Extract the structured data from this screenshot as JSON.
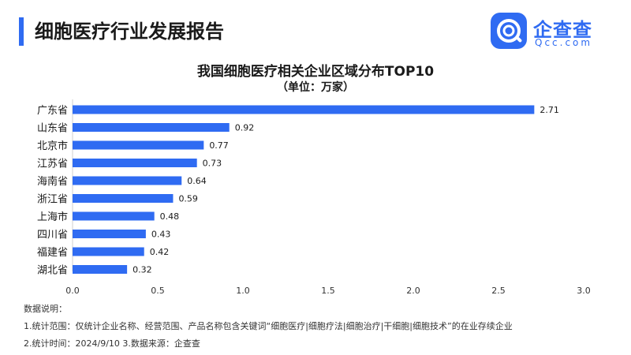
{
  "header": {
    "title": "细胞医疗行业发展报告",
    "accent_color": "#2f6bf2"
  },
  "brand": {
    "name": "企查查",
    "domain": "Qcc.com",
    "icon": "qcc-logo-icon",
    "color": "#2f6bf2"
  },
  "chart_data": {
    "type": "bar",
    "orientation": "horizontal",
    "title": "我国细胞医疗相关企业区域分布TOP10",
    "subtitle": "（单位：万家）",
    "categories": [
      "广东省",
      "山东省",
      "北京市",
      "江苏省",
      "海南省",
      "浙江省",
      "上海市",
      "四川省",
      "福建省",
      "湖北省"
    ],
    "values": [
      2.71,
      0.92,
      0.77,
      0.73,
      0.64,
      0.59,
      0.48,
      0.43,
      0.42,
      0.32
    ],
    "value_labels": [
      "2.71",
      "0.92",
      "0.77",
      "0.73",
      "0.64",
      "0.59",
      "0.48",
      "0.43",
      "0.42",
      "0.32"
    ],
    "xlim": [
      0,
      3
    ],
    "xticks": [
      "0.0",
      "0.5",
      "1.0",
      "1.5",
      "2.0",
      "2.5",
      "3.0"
    ],
    "grid": false,
    "bar_color": "#2f6bf2"
  },
  "notes": {
    "title": "数据说明：",
    "scope": "1.统计范围：仅统计企业名称、经营范围、产品名称包含关键词“细胞医疗|细胞疗法|细胞治疗|干细胞|细胞技术”的在业存续企业",
    "meta": "2.统计时间：2024/9/10    3.数据来源：企查查"
  }
}
